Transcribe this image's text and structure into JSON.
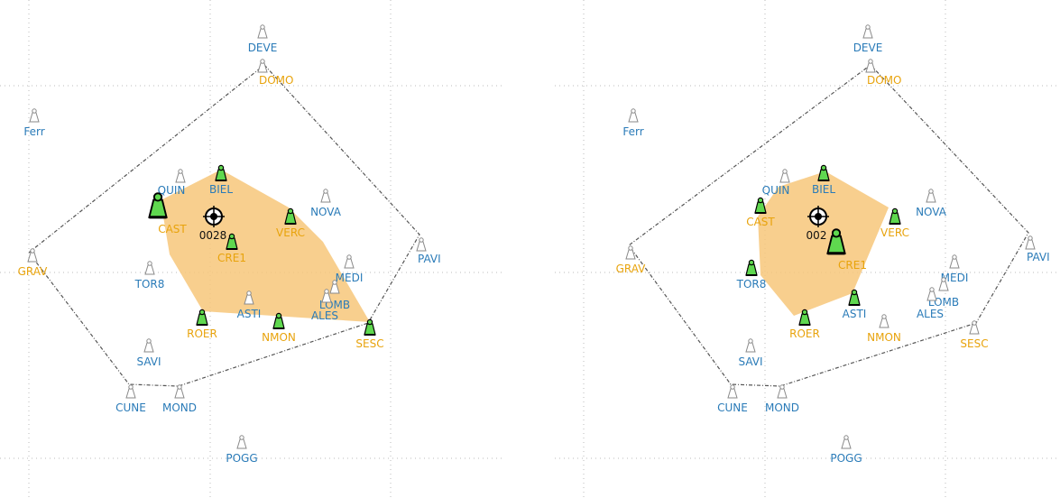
{
  "colors": {
    "blue_label": "#2a7bb8",
    "orange_label": "#e8a30c",
    "active_fill": "#5fd84f",
    "inactive_fill": "#ffffff",
    "area_fill": "#f7c77a",
    "boundary": "#555555",
    "grid": "#bbbbbb"
  },
  "icons": {
    "station": "station-marker-icon",
    "target": "crosshair-target-icon"
  },
  "panels": [
    {
      "center_label": "0028",
      "stations": [
        {
          "code": "DEVE",
          "color": "blue",
          "active": false
        },
        {
          "code": "DOMO",
          "color": "orange",
          "active": false
        },
        {
          "code": "Ferr",
          "color": "blue",
          "active": false
        },
        {
          "code": "QUIN",
          "color": "blue",
          "active": false
        },
        {
          "code": "BIEL",
          "color": "blue",
          "active": true
        },
        {
          "code": "CAST",
          "color": "orange",
          "active": true,
          "large": true
        },
        {
          "code": "NOVA",
          "color": "blue",
          "active": false
        },
        {
          "code": "VERC",
          "color": "orange",
          "active": true
        },
        {
          "code": "CRE1",
          "color": "orange",
          "active": true
        },
        {
          "code": "PAVI",
          "color": "blue",
          "active": false
        },
        {
          "code": "GRAV",
          "color": "orange",
          "active": false
        },
        {
          "code": "MEDI",
          "color": "blue",
          "active": false
        },
        {
          "code": "TOR8",
          "color": "blue",
          "active": false
        },
        {
          "code": "LOMB",
          "color": "blue",
          "active": false
        },
        {
          "code": "ALES",
          "color": "blue",
          "active": false
        },
        {
          "code": "ASTI",
          "color": "blue",
          "active": false
        },
        {
          "code": "ROER",
          "color": "orange",
          "active": true
        },
        {
          "code": "NMON",
          "color": "orange",
          "active": true
        },
        {
          "code": "SESC",
          "color": "orange",
          "active": true
        },
        {
          "code": "SAVI",
          "color": "blue",
          "active": false
        },
        {
          "code": "CUNE",
          "color": "blue",
          "active": false
        },
        {
          "code": "MOND",
          "color": "blue",
          "active": false
        },
        {
          "code": "POGG",
          "color": "blue",
          "active": false
        }
      ]
    },
    {
      "center_label": "002",
      "stations": [
        {
          "code": "DEVE",
          "color": "blue",
          "active": false
        },
        {
          "code": "DOMO",
          "color": "orange",
          "active": false
        },
        {
          "code": "Ferr",
          "color": "blue",
          "active": false
        },
        {
          "code": "QUIN",
          "color": "blue",
          "active": false
        },
        {
          "code": "BIEL",
          "color": "blue",
          "active": true
        },
        {
          "code": "CAST",
          "color": "orange",
          "active": true
        },
        {
          "code": "NOVA",
          "color": "blue",
          "active": false
        },
        {
          "code": "VERC",
          "color": "orange",
          "active": true
        },
        {
          "code": "CRE1",
          "color": "orange",
          "active": true,
          "large": true
        },
        {
          "code": "PAVI",
          "color": "blue",
          "active": false
        },
        {
          "code": "GRAV",
          "color": "orange",
          "active": false
        },
        {
          "code": "MEDI",
          "color": "blue",
          "active": false
        },
        {
          "code": "TOR8",
          "color": "blue",
          "active": true
        },
        {
          "code": "LOMB",
          "color": "blue",
          "active": false
        },
        {
          "code": "ALES",
          "color": "blue",
          "active": false
        },
        {
          "code": "ASTI",
          "color": "blue",
          "active": true
        },
        {
          "code": "ROER",
          "color": "orange",
          "active": true
        },
        {
          "code": "NMON",
          "color": "orange",
          "active": false
        },
        {
          "code": "SESC",
          "color": "orange",
          "active": false
        },
        {
          "code": "SAVI",
          "color": "blue",
          "active": false
        },
        {
          "code": "CUNE",
          "color": "blue",
          "active": false
        },
        {
          "code": "MOND",
          "color": "blue",
          "active": false
        },
        {
          "code": "POGG",
          "color": "blue",
          "active": false
        }
      ]
    }
  ]
}
